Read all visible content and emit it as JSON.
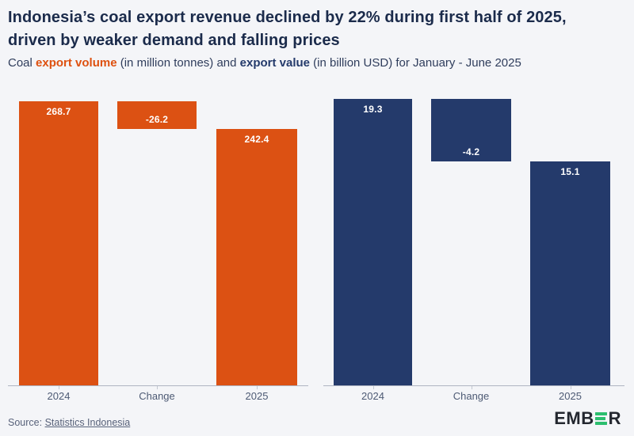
{
  "header": {
    "title_lines": [
      "Indonesia’s coal export revenue declined by 22% during first half of 2025,",
      "driven by weaker demand and falling prices"
    ]
  },
  "subtitle": {
    "segments": [
      {
        "text": "Coal "
      },
      {
        "text": "export volume",
        "style": "accent-volume"
      },
      {
        "text": " (in million tonnes) and "
      },
      {
        "text": "export value",
        "style": "accent-value"
      },
      {
        "text": " (in billion USD) for January - June 2025"
      }
    ]
  },
  "chart_data": [
    {
      "type": "bar",
      "subtype": "waterfall",
      "name": "coal-export-volume",
      "unit": "million tonnes",
      "color": "#DC5113",
      "categories": [
        "2024",
        "Change",
        "2025"
      ],
      "values": [
        268.7,
        -26.2,
        242.4
      ],
      "labels": [
        "268.7",
        "-26.2",
        "242.4"
      ],
      "label_color": "#FFFFFF",
      "axis": {
        "baseline": 0,
        "gridlines": false,
        "legend": "none"
      }
    },
    {
      "type": "bar",
      "subtype": "waterfall",
      "name": "coal-export-value",
      "unit": "billion USD",
      "color": "#243A6B",
      "categories": [
        "2024",
        "Change",
        "2025"
      ],
      "values": [
        19.3,
        -4.2,
        15.1
      ],
      "labels": [
        "19.3",
        "-4.2",
        "15.1"
      ],
      "label_color": "#FFFFFF",
      "axis": {
        "baseline": 0,
        "gridlines": false,
        "legend": "none"
      }
    }
  ],
  "source": {
    "label": "Source: ",
    "link_text": "Statistics Indonesia"
  },
  "logo": {
    "text_pre": "EMB",
    "text_post": "R",
    "green": "#2CBE6E"
  },
  "colors": {
    "background": "#F4F5F8",
    "title": "#1B2B4B",
    "orange": "#DC5113",
    "navy": "#243A6B",
    "axis_line": "#AFB5C2",
    "axis_label": "#4D5A74"
  }
}
